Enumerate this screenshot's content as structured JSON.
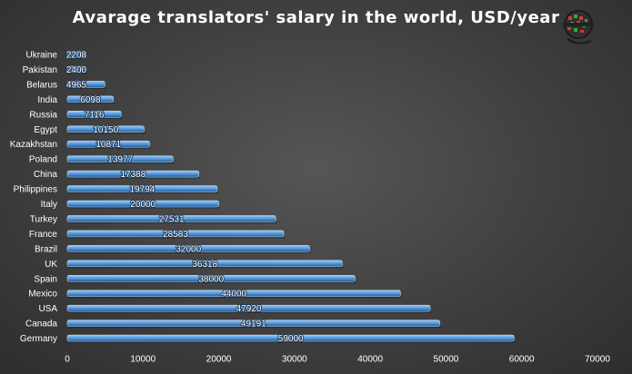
{
  "chart_data": {
    "type": "bar",
    "orientation": "horizontal",
    "title": "Avarage translators' salary in the world, USD/year",
    "categories": [
      "Ukraine",
      "Pakistan",
      "Belarus",
      "India",
      "Russia",
      "Egypt",
      "Kazakhstan",
      "Poland",
      "China",
      "Philippines",
      "Italy",
      "Turkey",
      "France",
      "Brazil",
      "UK",
      "Spain",
      "Mexico",
      "USA",
      "Canada",
      "Germany"
    ],
    "values": [
      2208,
      2400,
      4965,
      6098,
      7116,
      10150,
      10871,
      13977,
      17388,
      19794,
      20000,
      27531,
      28583,
      32000,
      36318,
      38000,
      44000,
      47920,
      49191,
      59000
    ],
    "data_labels": [
      "2208",
      "2400",
      "4965",
      "6098",
      "7116",
      "10150",
      "10871",
      "13977",
      "17388",
      "19794",
      "20000",
      "27531",
      "28583",
      "32000",
      "36318",
      "38000",
      "44000",
      "47920",
      "49191",
      "59000"
    ],
    "xlim": [
      0,
      70000
    ],
    "x_ticks": [
      "0",
      "10000",
      "20000",
      "30000",
      "40000",
      "50000",
      "60000",
      "70000"
    ],
    "grid": false,
    "legend": "none",
    "bar_color": "#4f93d8",
    "background_color": "#3f3f3f",
    "text_color": "#ffffff"
  },
  "logo": {
    "icon": "globe-logo-icon"
  }
}
